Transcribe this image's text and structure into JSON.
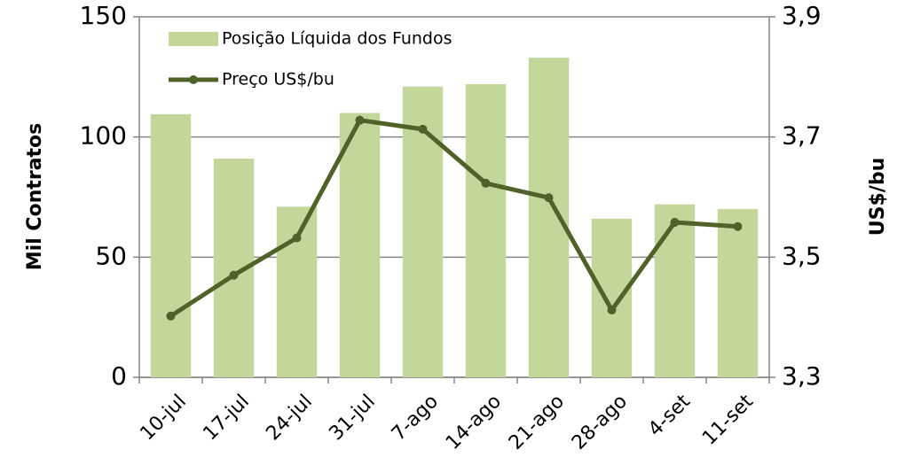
{
  "chart_data": {
    "type": "bar",
    "ylabel": "Mil Contratos",
    "y2label": "US$/bu",
    "categories": [
      "10-jul",
      "17-jul",
      "24-jul",
      "31-jul",
      "7-ago",
      "14-ago",
      "21-ago",
      "28-ago",
      "4-set",
      "11-set"
    ],
    "series": [
      {
        "name": "Posição Líquida dos Fundos",
        "type": "bar",
        "color": "#c4d79b",
        "values": [
          109.5,
          91,
          71,
          110,
          121,
          122,
          133,
          66,
          72,
          70
        ]
      },
      {
        "name": "Preço US$/bu",
        "type": "line",
        "axis": "y2",
        "color": "#4f6228",
        "values": [
          3.402,
          3.47,
          3.532,
          3.728,
          3.713,
          3.623,
          3.599,
          3.412,
          3.558,
          3.551
        ]
      }
    ],
    "ylim": [
      0,
      150
    ],
    "yticks": [
      0,
      50,
      100,
      150
    ],
    "y2lim": [
      3.3,
      3.9
    ],
    "y2ticks": [
      {
        "value": 3.3,
        "label": "3,3"
      },
      {
        "value": 3.5,
        "label": "3,5"
      },
      {
        "value": 3.7,
        "label": "3,7"
      },
      {
        "value": 3.9,
        "label": "3,9"
      }
    ],
    "grid": true,
    "legend": "top-left"
  }
}
